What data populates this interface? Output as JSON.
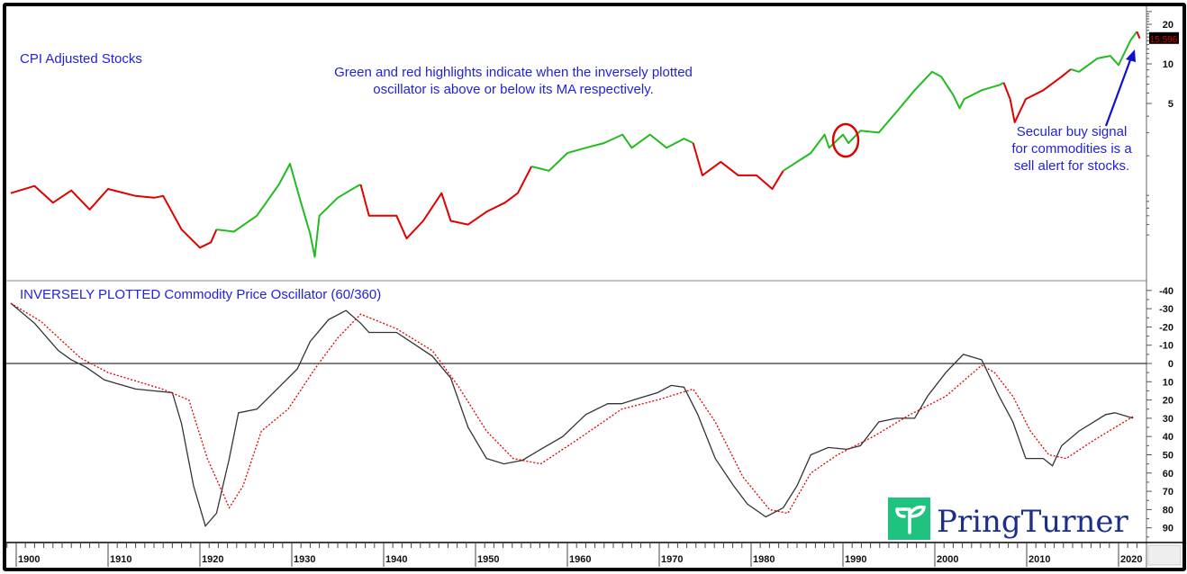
{
  "chart_data": [
    {
      "type": "line",
      "title": "CPI Adjusted Stocks",
      "yscale": "log",
      "y_ticks": [
        5,
        10,
        20
      ],
      "last_value_label": "15.596",
      "colors": {
        "green": "#22bb22",
        "red": "#e00000"
      },
      "annotations": [
        "Green and red highlights indicate when the inversely plotted",
        "oscillator is above or below its MA respectively."
      ],
      "callout": [
        "Secular buy signal",
        "for commodities is a",
        "sell alert for stocks."
      ],
      "highlight_circle_year": 1990,
      "segments": [
        {
          "signal": "red",
          "points": [
            [
              1899.4,
              1.04
            ],
            [
              1902,
              1.18
            ],
            [
              1904,
              0.88
            ],
            [
              1906,
              1.09
            ],
            [
              1908,
              0.78
            ],
            [
              1910,
              1.12
            ],
            [
              1913,
              0.99
            ],
            [
              1915,
              0.96
            ],
            [
              1916,
              0.99
            ],
            [
              1918,
              0.55
            ],
            [
              1920,
              0.4
            ],
            [
              1921.2,
              0.44
            ],
            [
              1921.8,
              0.55
            ]
          ]
        },
        {
          "signal": "green",
          "points": [
            [
              1921.8,
              0.55
            ],
            [
              1923.7,
              0.53
            ],
            [
              1926.2,
              0.7
            ],
            [
              1928.6,
              1.21
            ],
            [
              1929.8,
              1.74
            ],
            [
              1931,
              0.88
            ],
            [
              1932,
              0.51
            ],
            [
              1932.5,
              0.34
            ],
            [
              1933,
              0.7
            ],
            [
              1935,
              0.96
            ],
            [
              1937,
              1.16
            ],
            [
              1937.5,
              1.21
            ]
          ]
        },
        {
          "signal": "red",
          "points": [
            [
              1937.5,
              1.21
            ],
            [
              1938.4,
              0.7
            ],
            [
              1941.4,
              0.7
            ],
            [
              1942.5,
              0.47
            ],
            [
              1944.3,
              0.64
            ],
            [
              1946.3,
              1.04
            ],
            [
              1947.3,
              0.64
            ],
            [
              1949.2,
              0.6
            ],
            [
              1951.2,
              0.75
            ],
            [
              1953.2,
              0.88
            ],
            [
              1954.6,
              1.04
            ],
            [
              1956.1,
              1.66
            ]
          ]
        },
        {
          "signal": "green",
          "points": [
            [
              1956.1,
              1.66
            ],
            [
              1958,
              1.54
            ],
            [
              1960,
              2.1
            ],
            [
              1962,
              2.3
            ],
            [
              1964,
              2.5
            ],
            [
              1966,
              2.9
            ],
            [
              1967,
              2.3
            ],
            [
              1969,
              2.9
            ],
            [
              1970.8,
              2.3
            ],
            [
              1972.7,
              2.7
            ],
            [
              1973.7,
              2.5
            ]
          ]
        },
        {
          "signal": "red",
          "points": [
            [
              1973.7,
              2.5
            ],
            [
              1974.7,
              1.42
            ],
            [
              1976.7,
              1.8
            ],
            [
              1978.6,
              1.42
            ],
            [
              1980.6,
              1.42
            ],
            [
              1982.3,
              1.12
            ],
            [
              1983.5,
              1.54
            ]
          ]
        },
        {
          "signal": "green",
          "points": [
            [
              1983.5,
              1.54
            ],
            [
              1986.5,
              2.1
            ],
            [
              1988,
              2.9
            ],
            [
              1988.5,
              2.3
            ],
            [
              1990,
              2.9
            ],
            [
              1990.6,
              2.5
            ],
            [
              1991.9,
              3.1
            ],
            [
              1993.9,
              3.0
            ],
            [
              1995.8,
              4.3
            ],
            [
              1997.8,
              6.3
            ],
            [
              1999.7,
              8.7
            ],
            [
              2000.7,
              8.0
            ],
            [
              2002,
              5.8
            ],
            [
              2002.7,
              4.6
            ],
            [
              2003.2,
              5.4
            ],
            [
              2005.1,
              6.3
            ],
            [
              2007,
              6.9
            ],
            [
              2007.5,
              7.2
            ]
          ]
        },
        {
          "signal": "red",
          "points": [
            [
              2007.5,
              7.2
            ],
            [
              2008.2,
              5.4
            ],
            [
              2008.7,
              3.6
            ],
            [
              2009.9,
              5.4
            ],
            [
              2011.8,
              6.3
            ],
            [
              2013.8,
              8.0
            ],
            [
              2014.8,
              9.1
            ]
          ]
        },
        {
          "signal": "green",
          "points": [
            [
              2014.8,
              9.1
            ],
            [
              2015.7,
              8.7
            ],
            [
              2017.7,
              11.0
            ],
            [
              2019.1,
              11.5
            ],
            [
              2020,
              9.8
            ],
            [
              2021.3,
              15.1
            ],
            [
              2022,
              17.6
            ]
          ]
        },
        {
          "signal": "red",
          "points": [
            [
              2022,
              17.6
            ],
            [
              2022.3,
              15.6
            ]
          ]
        }
      ]
    },
    {
      "type": "line",
      "title": "INVERSELY PLOTTED Commodity Price Oscillator (60/360)",
      "y_inverted": true,
      "ylim": [
        -40,
        95
      ],
      "y_ticks": [
        -40,
        -30,
        -20,
        -10,
        0,
        10,
        20,
        30,
        40,
        50,
        60,
        70,
        80,
        90
      ],
      "reference_line": 0,
      "x_ticks": [
        1900,
        1910,
        1920,
        1930,
        1940,
        1950,
        1960,
        1970,
        1980,
        1990,
        2000,
        2010,
        2020
      ],
      "series": [
        {
          "style": "solid",
          "color": "#333333",
          "points": [
            [
              1899.4,
              -33
            ],
            [
              1902,
              -22
            ],
            [
              1904.6,
              -7
            ],
            [
              1906,
              -2
            ],
            [
              1907.6,
              2
            ],
            [
              1909.6,
              9
            ],
            [
              1913,
              14
            ],
            [
              1917,
              16
            ],
            [
              1918,
              33
            ],
            [
              1919.3,
              67
            ],
            [
              1920.6,
              89
            ],
            [
              1921.8,
              82
            ],
            [
              1923.2,
              52
            ],
            [
              1924.2,
              27
            ],
            [
              1926.2,
              25
            ],
            [
              1928.6,
              13
            ],
            [
              1930.6,
              3
            ],
            [
              1932,
              -12
            ],
            [
              1934,
              -24
            ],
            [
              1935.9,
              -29
            ],
            [
              1937.5,
              -22
            ],
            [
              1938.4,
              -17
            ],
            [
              1941.4,
              -17
            ],
            [
              1943.8,
              -9
            ],
            [
              1945.3,
              -4
            ],
            [
              1947.3,
              8
            ],
            [
              1949.2,
              35
            ],
            [
              1951.2,
              52
            ],
            [
              1953.1,
              55
            ],
            [
              1955.1,
              53
            ],
            [
              1957.1,
              47
            ],
            [
              1959.5,
              40
            ],
            [
              1962,
              28
            ],
            [
              1964.4,
              22
            ],
            [
              1965.9,
              22
            ],
            [
              1967.8,
              19
            ],
            [
              1969.8,
              16
            ],
            [
              1971.3,
              12
            ],
            [
              1972.7,
              13
            ],
            [
              1974.2,
              28
            ],
            [
              1976.1,
              52
            ],
            [
              1978.1,
              67
            ],
            [
              1979.6,
              77
            ],
            [
              1981.6,
              84
            ],
            [
              1983.5,
              79
            ],
            [
              1985,
              67
            ],
            [
              1986.5,
              50
            ],
            [
              1988.4,
              46
            ],
            [
              1990.4,
              47
            ],
            [
              1991.9,
              45
            ],
            [
              1993.9,
              32
            ],
            [
              1995.8,
              30
            ],
            [
              1997.8,
              30
            ],
            [
              1999.2,
              18
            ],
            [
              2001.2,
              5
            ],
            [
              2003.1,
              -5
            ],
            [
              2005.1,
              -2
            ],
            [
              2007,
              18
            ],
            [
              2008.5,
              32
            ],
            [
              2009.9,
              52
            ],
            [
              2011.8,
              52
            ],
            [
              2012.8,
              56
            ],
            [
              2013.8,
              45
            ],
            [
              2015.7,
              37
            ],
            [
              2018.6,
              28
            ],
            [
              2019.6,
              27
            ],
            [
              2021.6,
              30
            ]
          ]
        },
        {
          "style": "dotted",
          "color": "#e00000",
          "points": [
            [
              1899.4,
              -33
            ],
            [
              1902.7,
              -23
            ],
            [
              1907,
              -3
            ],
            [
              1910,
              5
            ],
            [
              1915.9,
              14
            ],
            [
              1918.8,
              20
            ],
            [
              1920.8,
              52
            ],
            [
              1923.2,
              79
            ],
            [
              1924.7,
              67
            ],
            [
              1926.7,
              37
            ],
            [
              1929.6,
              25
            ],
            [
              1932.5,
              3
            ],
            [
              1935,
              -14
            ],
            [
              1937.5,
              -27
            ],
            [
              1941.4,
              -19
            ],
            [
              1945.3,
              -7
            ],
            [
              1948.2,
              13
            ],
            [
              1951.2,
              37
            ],
            [
              1954.1,
              52
            ],
            [
              1957.1,
              55
            ],
            [
              1961,
              42
            ],
            [
              1965.9,
              25
            ],
            [
              1969.8,
              20
            ],
            [
              1973.7,
              14
            ],
            [
              1976.1,
              32
            ],
            [
              1979.1,
              62
            ],
            [
              1982,
              80
            ],
            [
              1984,
              82
            ],
            [
              1986.5,
              60
            ],
            [
              1989.4,
              50
            ],
            [
              1993.3,
              40
            ],
            [
              1997.3,
              28
            ],
            [
              2001.2,
              18
            ],
            [
              2005.1,
              1
            ],
            [
              2006.5,
              5
            ],
            [
              2008.5,
              18
            ],
            [
              2010.4,
              37
            ],
            [
              2012.4,
              50
            ],
            [
              2014.3,
              52
            ],
            [
              2017.3,
              42
            ],
            [
              2021.6,
              29
            ]
          ]
        }
      ]
    }
  ],
  "logo": {
    "text": "PringTurner",
    "color": "#1a2e8a",
    "mark_color": "#1fc37f"
  }
}
